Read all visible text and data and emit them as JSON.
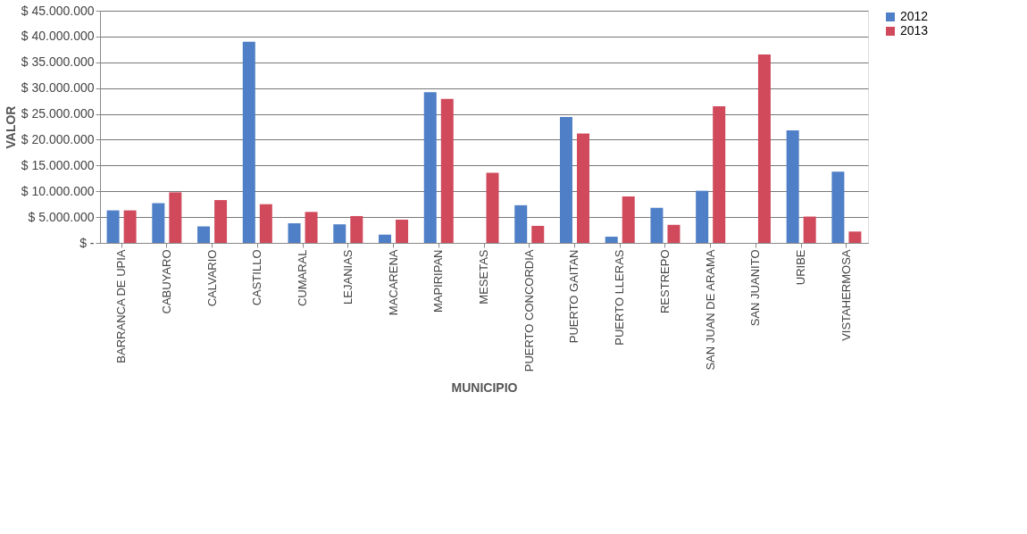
{
  "chart_data": {
    "type": "bar",
    "xlabel": "MUNICIPIO",
    "ylabel": "VALOR",
    "categories": [
      "BARRANCA DE UPIA",
      "CABUYARO",
      "CALVARIO",
      "CASTILLO",
      "CUMARAL",
      "LEJANIAS",
      "MACARENA",
      "MAPIRIPAN",
      "MESETAS",
      "PUERTO CONCORDIA",
      "PUERTO GAITAN",
      "PUERTO LLERAS",
      "RESTREPO",
      "SAN JUAN DE ARAMA",
      "SAN JUANITO",
      "URIBE",
      "VISTAHERMOSA"
    ],
    "series": [
      {
        "name": "2012",
        "color": "#4f7fc6",
        "values": [
          6300000,
          7700000,
          3200000,
          39000000,
          3800000,
          3600000,
          1600000,
          29200000,
          0,
          7300000,
          24400000,
          1200000,
          6800000,
          10100000,
          0,
          21800000,
          13800000
        ]
      },
      {
        "name": "2013",
        "color": "#d04a5c",
        "values": [
          6300000,
          9800000,
          8300000,
          7500000,
          6000000,
          5200000,
          4500000,
          27900000,
          13600000,
          3300000,
          21200000,
          9000000,
          3500000,
          26500000,
          36500000,
          5100000,
          2200000
        ]
      }
    ],
    "ylim": [
      0,
      45000000
    ],
    "yticks": [
      {
        "value": 0,
        "label": "$ -"
      },
      {
        "value": 5000000,
        "label": "$ 5.000.000"
      },
      {
        "value": 10000000,
        "label": "$ 10.000.000"
      },
      {
        "value": 15000000,
        "label": "$ 15.000.000"
      },
      {
        "value": 20000000,
        "label": "$ 20.000.000"
      },
      {
        "value": 25000000,
        "label": "$ 25.000.000"
      },
      {
        "value": 30000000,
        "label": "$ 30.000.000"
      },
      {
        "value": 35000000,
        "label": "$ 35.000.000"
      },
      {
        "value": 40000000,
        "label": "$ 40.000.000"
      },
      {
        "value": 45000000,
        "label": "$ 45.000.000"
      }
    ],
    "grid": "y",
    "legend": "right"
  }
}
